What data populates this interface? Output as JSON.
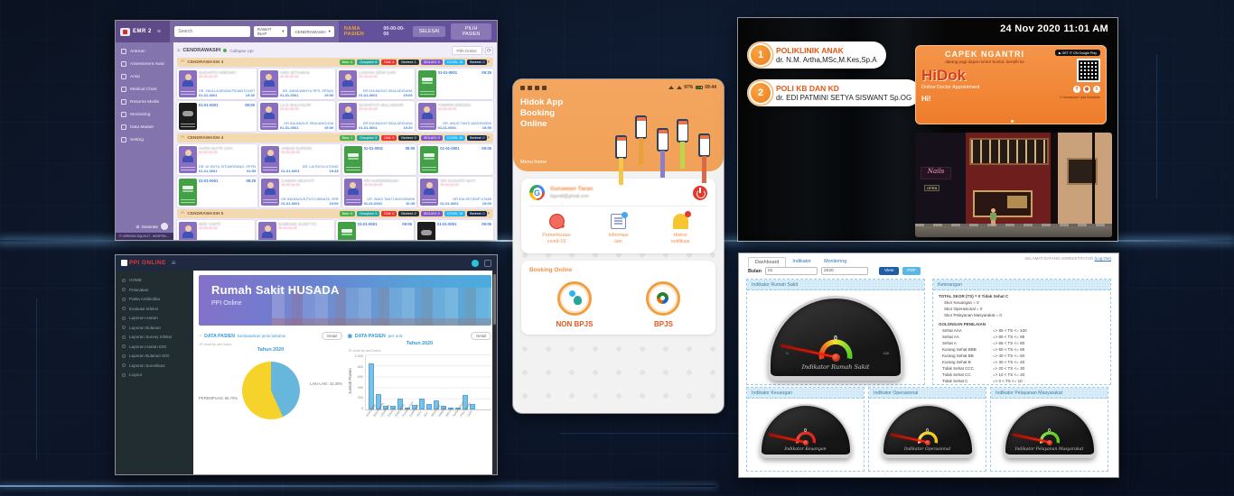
{
  "colors": {
    "emr_purple": "#7a68a6",
    "emr_accent": "#f5a623",
    "ppi_navbar": "#1f2940",
    "hero_gradient": [
      "#8571c9",
      "#4aaede"
    ],
    "mobile_orange": "#f2a257",
    "ad_orange": "#ee7c2b",
    "brand_red": "#d6401a",
    "dash_header_blue": "#d9edf9",
    "gauge_red": "#e23222",
    "gauge_yellow": "#f2d32e",
    "gauge_green": "#58cc18",
    "pie_blue": "#67b7dc",
    "pie_yellow": "#f6d32b",
    "bar_blue": "#7cc0e8"
  },
  "emr": {
    "logo": "EMR 2",
    "menu_icon": "≡",
    "search_placeholder": "Search",
    "filter_ward_type": "RAWAT INAP",
    "filter_ward": "CENDRAWASIH",
    "caret": "▾",
    "patient_label": "NAMA PASIEN",
    "patient_time": "00-00-00-00",
    "btn_done": "SELESAI",
    "btn_pick": "PILIH PASIEN",
    "sidebar": {
      "items": [
        {
          "label": "Antrean"
        },
        {
          "label": "Assessment Awal"
        },
        {
          "label": "Arsip"
        },
        {
          "label": "Medical Chart"
        },
        {
          "label": "Resume Medis"
        },
        {
          "label": "Monitoring"
        },
        {
          "label": "Data Master"
        },
        {
          "label": "Setting"
        }
      ],
      "user": "dr. Generate",
      "version": "© VERSION SQL2017 - HOSPITA..."
    },
    "breadcrumb": {
      "home": "⌂",
      "ward": "CENDRAWASIH",
      "collapse": "Collapse Up!"
    },
    "doctor_filter": "Pilih Dokter",
    "refresh_icon": "⟳",
    "sections": [
      {
        "title": "CENDRAWASIH 3",
        "chips": [
          {
            "label": "Baru: 5",
            "c": "chip-g"
          },
          {
            "label": "Occupied: 8",
            "c": "chip-t"
          },
          {
            "label": "DNJ: 4",
            "c": "chip-r"
          },
          {
            "label": "Bedrest: 1",
            "c": "chip-d"
          },
          {
            "label": "ISOLASI: 0",
            "c": "chip-p"
          },
          {
            "label": "COVID: 19",
            "c": "chip-c"
          },
          {
            "label": "Bedrest: 0",
            "c": "chip-n"
          }
        ],
        "cards": [
          {
            "t": "occ",
            "l1": "SUGIARTO WIBOWO",
            "l1b": "",
            "l2": "00-00-00-00",
            "l3": "DR. FAULLA ARUNA PIDIANTOJATI",
            "l4a": "01-01-0001",
            "l4b": "19:45"
          },
          {
            "t": "occ",
            "l1": "ANDI SETIAWAN",
            "l1b": "",
            "l2": "00-00-00-00",
            "l3": "DR. ANNA WAHYU RPS, SPD(K)",
            "l4a": "01-01-0001",
            "l4b": "19:00"
          },
          {
            "t": "occ",
            "l1": "LUSIANA DEWI SARI",
            "l1b": "",
            "l2": "00-00-00-00",
            "l3": "DR IDA BAGUS SIDA ADIGUNA",
            "l4a": "01-01-0001",
            "l4b": "19:05"
          },
          {
            "t": "emp",
            "l1": "01-01-0001",
            "l1b": "09:25",
            "l2": "",
            "l3": "",
            "l4a": "",
            "l4b": ""
          },
          {
            "t": "blk",
            "l1": "01-01-0001",
            "l1b": "09:05",
            "l2": "",
            "l3": "",
            "l4a": "",
            "l4b": ""
          },
          {
            "t": "occ",
            "l1": "LILIS MULYASARI",
            "l1b": "",
            "l2": "00-00-00-00",
            "l3": "DR IDA BAGUS SIDA ADIGUNA",
            "l4a": "01-01-0001",
            "l4b": "19:00"
          },
          {
            "t": "occ",
            "l1": "SUHARTATI WULANDARI",
            "l1b": "",
            "l2": "00-00-00-00",
            "l3": "DR IDA BAGUS SIDA ADIGUNA",
            "l4a": "01-01-0001",
            "l4b": "19:20"
          },
          {
            "t": "occ",
            "l1": "TOMIRIN WIDODO",
            "l1b": "",
            "l2": "00-00-00-00",
            "l3": "DR. ANUG TANTI ANGGRAENI",
            "l4a": "01-01-0001",
            "l4b": "19:55"
          }
        ]
      },
      {
        "title": "CENDRAWASIH 4",
        "chips": [
          {
            "label": "Baru: 1",
            "c": "chip-g"
          },
          {
            "label": "Occupied: 5",
            "c": "chip-t"
          },
          {
            "label": "DNJ: 0",
            "c": "chip-r"
          },
          {
            "label": "Bedrest: 0",
            "c": "chip-d"
          },
          {
            "label": "ISOLASI: 0",
            "c": "chip-p"
          },
          {
            "label": "COVID: 19",
            "c": "chip-c"
          },
          {
            "label": "Bedrest: 0",
            "c": "chip-n"
          }
        ],
        "cards": [
          {
            "t": "occ",
            "l1": "HARIS NUTRI JAYA",
            "l1b": "",
            "l2": "00-00-00-00",
            "l3": "DR. M. RUTU SITUMORANG, SP.PD",
            "l4a": "01-01-0001",
            "l4b": "04:55"
          },
          {
            "t": "occ",
            "l1": "AHMAD SUPENO",
            "l1b": "",
            "l2": "00-00-00-00",
            "l3": "DR. LIA RUTU UTOMO",
            "l4a": "01-01-0001",
            "l4b": "19:45"
          },
          {
            "t": "emp",
            "l1": "01-01-0001",
            "l1b": "09:05",
            "l2": "",
            "l3": "",
            "l4a": "",
            "l4b": ""
          },
          {
            "t": "emp",
            "l1": "01-01-0001",
            "l1b": "09:05",
            "l2": "",
            "l3": "",
            "l4a": "",
            "l4b": ""
          },
          {
            "t": "emp",
            "l1": "01-01-0001",
            "l1b": "09:25",
            "l2": "",
            "l3": "",
            "l4a": "",
            "l4b": ""
          },
          {
            "t": "occ",
            "l1": "CANDRA WIJAYATI",
            "l1b": "",
            "l2": "00-00-00-00",
            "l3": "DR IDA BAGUS PUTU WINATA, SPB",
            "l4a": "01-01-0001",
            "l4b": "19:06"
          },
          {
            "t": "occ",
            "l1": "SRI HARDININGSIH",
            "l1b": "",
            "l2": "00-00-00-00",
            "l3": "DR. WAGI TANTI ANGGRAENI",
            "l4a": "01-01-0001",
            "l4b": "10:45"
          },
          {
            "t": "occ",
            "l1": "SRI SUGIARTI WATI",
            "l1b": "",
            "l2": "00-00-00-00",
            "l3": "DR IDA SETIDAP UTAMI",
            "l4a": "01-01-0001",
            "l4b": "19:00"
          }
        ]
      },
      {
        "title": "CENDRAWASIH 5",
        "chips": [
          {
            "label": "Baru: 5",
            "c": "chip-g"
          },
          {
            "label": "Occupied: 5",
            "c": "chip-t"
          },
          {
            "label": "DNJ: 0",
            "c": "chip-r"
          },
          {
            "label": "Bedrest: 2",
            "c": "chip-d"
          },
          {
            "label": "ISOLASI: 0",
            "c": "chip-p"
          },
          {
            "label": "COVID: 19",
            "c": "chip-c"
          },
          {
            "label": "Bedrest: 0",
            "c": "chip-n"
          }
        ],
        "cards": [
          {
            "t": "occ",
            "l1": "WIDI YANTO",
            "l1b": "",
            "l2": "00-00-00-00",
            "l3": "DR AA BAGUS DHARMAYUDA",
            "l4a": "01-01-0001",
            "l4b": "19:10"
          },
          {
            "t": "occ",
            "l1": "BAMBANG SUSETYO",
            "l1b": "",
            "l2": "00-00-00-00",
            "l3": "DR IDA BAGUS SIDA ADIGUNA",
            "l4a": "01-01-0001",
            "l4b": "19:30"
          },
          {
            "t": "emp",
            "l1": "01-01-0001",
            "l1b": "09:05",
            "l2": "",
            "l3": "",
            "l4a": "",
            "l4b": ""
          },
          {
            "t": "blk",
            "l1": "01-01-0001",
            "l1b": "09:05",
            "l2": "",
            "l3": "",
            "l4a": "",
            "l4b": ""
          }
        ]
      }
    ]
  },
  "ppi": {
    "logo": "PPI ONLINE",
    "burger": "≡",
    "sidebar_items": [
      {
        "label": "HOME"
      },
      {
        "label": "Pelacakan"
      },
      {
        "label": "Pakta Antibiotika"
      },
      {
        "label": "Evaluasi Infeksi"
      },
      {
        "label": "Laporan Harian"
      },
      {
        "label": "Laporan Bulanan"
      },
      {
        "label": "Laporan Survey Infeksi"
      },
      {
        "label": "Laporan Harian IDO"
      },
      {
        "label": "Laporan Bulanan IDO"
      },
      {
        "label": "Laporan Surveilans"
      },
      {
        "label": "Logout"
      }
    ],
    "hero_title": "Rumah Sakit HUSADA",
    "hero_sub": "PPI Online",
    "left_card": {
      "icon": "◔",
      "title": "DATA PASIEN",
      "sub": "berdasarkan jenis kelamin",
      "detail": "Detail"
    },
    "right_card": {
      "icon": "▦",
      "title": "DATA PASIEN",
      "sub": "per unit",
      "detail": "Detail"
    }
  },
  "chart_data": [
    {
      "type": "pie",
      "title": "Tahun 2020",
      "labels": [
        "LAKI-LAKI",
        "PEREMPUAN"
      ],
      "values": [
        43.3,
        56.7
      ],
      "colors": [
        "#67b7dc",
        "#f6d32b"
      ],
      "label_right": "LAKI-LAKI: 43.30%",
      "label_left": "PEREMPUAN: 56.70%",
      "watermark": "JS chart by amCharts",
      "legend_position": "inline-callouts"
    },
    {
      "type": "bar",
      "title": "Tahun 2020",
      "xlabel": "",
      "ylabel": "Jumlah Pasien",
      "ylim": [
        0,
        1000
      ],
      "yticks": [
        "1,000",
        "800",
        "600",
        "400",
        "200",
        "0"
      ],
      "grid": true,
      "categories": [
        "ANGGREK",
        "BOUGENVIL",
        "CEMPAKA",
        "DAHLIA",
        "EDELWEIS",
        "FLAMBOYAN",
        "GARDENA",
        "HCU",
        "ICU",
        "KENANGA",
        "MAWAR",
        "MELATI",
        "NUSA INDAH",
        "POLI UMUM",
        "UGD"
      ],
      "values": [
        830,
        280,
        60,
        60,
        190,
        30,
        90,
        200,
        100,
        160,
        60,
        10,
        20,
        270,
        100
      ],
      "bar_color": "#7cc0e8",
      "watermark": "JS chart by amCharts"
    },
    {
      "type": "gauge",
      "title": "Indikator Rumah Sakit",
      "value": 0,
      "min": 0,
      "max": 100
    },
    {
      "type": "gauge",
      "title": "Indikator Keuangan",
      "value": 0,
      "min": 0,
      "max": 100,
      "arc_color": "#e23222"
    },
    {
      "type": "gauge",
      "title": "Indikator Operasional",
      "value": 0,
      "min": 0,
      "max": 100,
      "arc_color": "#f2d32e"
    },
    {
      "type": "gauge",
      "title": "Indikator Pelayanan Masyarakat",
      "value": 0,
      "min": 0,
      "max": 100,
      "arc_color": "#58cc18"
    }
  ],
  "mobile": {
    "status": {
      "battery": "97%",
      "time": "09:44"
    },
    "title_lines": [
      "Hidok App",
      "Booking",
      "Online"
    ],
    "menu_home": "Menu home",
    "profile": {
      "name": "Gunawan Taran",
      "email": "bgundi@gmail.com"
    },
    "menu": [
      {
        "icon": "virus-icon",
        "cls": "virus",
        "l1": "Pemeriksaan",
        "l2": "covid-19"
      },
      {
        "icon": "document-icon",
        "cls": "doc",
        "l1": "Informasi",
        "l2": "lain"
      },
      {
        "icon": "bell-icon",
        "cls": "bell",
        "l1": "Histori",
        "l2": "notifikasi"
      }
    ],
    "booking": {
      "title": "Booking Online",
      "options": [
        {
          "label": "NON BPJS",
          "b": "b1"
        },
        {
          "label": "BPJS",
          "b": "b2"
        }
      ]
    }
  },
  "queue": {
    "datetime": "24 Nov 2020 11:01 AM",
    "items": [
      {
        "num": "1",
        "clinic": "POLIKLINIK ANAK",
        "doctor": "dr. N.M. Artha,MSc,M.Kes,Sp.A"
      },
      {
        "num": "2",
        "clinic": "POLI KB DAN KD",
        "doctor": "dr. EDI PATMINI SETYA SISWANT Sp.OG"
      }
    ],
    "ad": {
      "headline": "CAPEK NGANTRI",
      "sub": "datang pagi dapat nomor buntut, beralih ke",
      "brand": "HiDok",
      "tagline": "Online Doctor Appointment",
      "store_badge": "▶ GET IT ON  Google Play",
      "logo": "Hi!",
      "copyright": "© Hanasolusi Cipta Solusindo",
      "socials": [
        "f",
        "◉",
        "t"
      ]
    },
    "scene": {
      "sign1": "Nails",
      "sign2": "OPEN"
    }
  },
  "dashboard": {
    "welcome": "SELAMAT DATANG ADMINISTRATOR",
    "logout_link": "(Log Out)",
    "tabs": [
      {
        "label": "Dashboard"
      },
      {
        "label": "Indikator"
      },
      {
        "label": "Monitoring"
      }
    ],
    "form": {
      "label": "Bulan",
      "month": "01",
      "year": "2020",
      "btn_view": "View",
      "btn_pdf": "PDF"
    },
    "main_gauge": {
      "title": "Indikator Rumah Sakit",
      "value": "0",
      "min": "0",
      "max": "100",
      "script_label": "Indikator Rumah Sakit"
    },
    "keterangan": {
      "title": "Keterangan",
      "total": "TOTAL SKOR (TS) = 0 Tidak Sehat C",
      "skor_lines": [
        {
          "label": "Skor Keuangan = 0"
        },
        {
          "label": "Skor Operasional = 0"
        },
        {
          "label": "Skor Pelayanan Masyarakat = 0"
        }
      ],
      "golongan_title": "GOLONGAN PENILAIAN",
      "rows": [
        {
          "kl": "Sehat AAA",
          "kr": "=> 95 < TS <= 100"
        },
        {
          "kl": "Sehat AA",
          "kr": "=> 80 < TS <= 95"
        },
        {
          "kl": "Sehat A",
          "kr": "=> 65 < TS <= 80"
        },
        {
          "kl": "Kurang Sehat BBB",
          "kr": "=> 50 < TS <= 65"
        },
        {
          "kl": "Kurang Sehat BB",
          "kr": "=> 40 < TS <= 50"
        },
        {
          "kl": "Kurang Sehat B",
          "kr": "=> 30 < TS <= 40"
        },
        {
          "kl": "Tidak Sehat CCC",
          "kr": "=> 20 < TS <= 30"
        },
        {
          "kl": "Tidak Sehat CC",
          "kr": "=> 10 < TS <= 20"
        },
        {
          "kl": "Tidak Sehat C",
          "kr": "=> 0 < TS <= 10"
        }
      ]
    },
    "small_gauges": [
      {
        "title": "Indikator Keuangan",
        "value": "0",
        "cls": "g-red",
        "pos": "sg1",
        "label": "Indikator Keuangan"
      },
      {
        "title": "Indikator Operasional",
        "value": "0",
        "cls": "g-yel",
        "pos": "sg2",
        "label": "Indikator Operasional"
      },
      {
        "title": "Indikator Pelayanan Masyarakat",
        "value": "0",
        "cls": "g-grn",
        "pos": "sg3",
        "label": "Indikator Pelayanan Masyarakat"
      }
    ]
  }
}
